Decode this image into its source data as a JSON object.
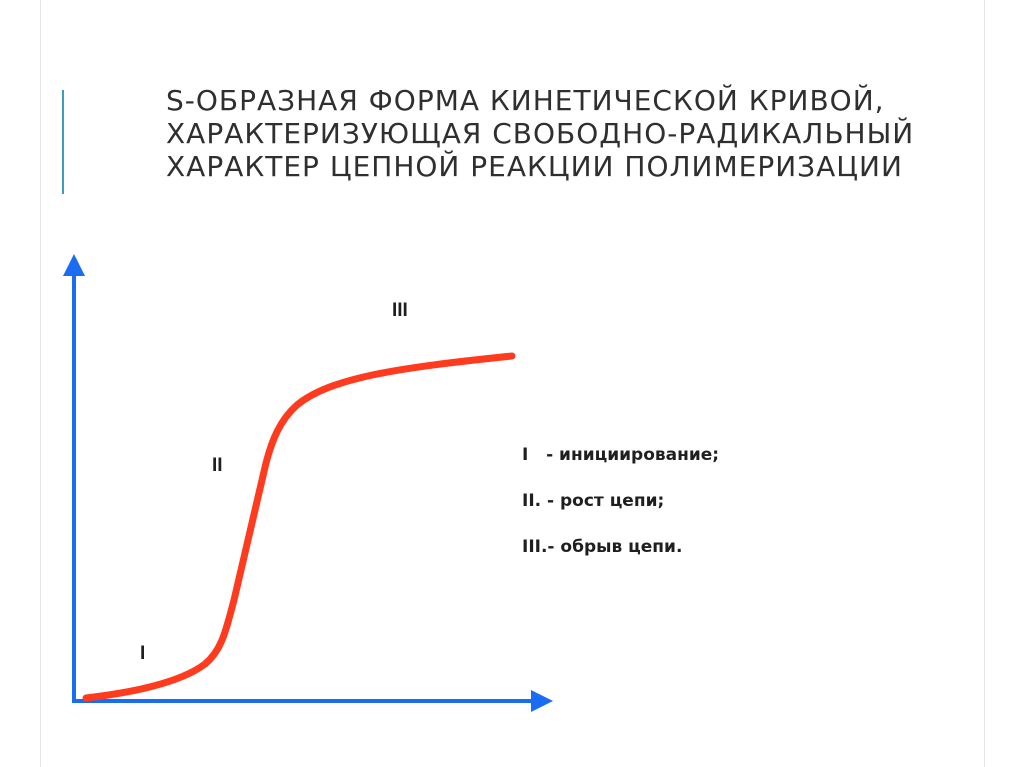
{
  "title": {
    "lines": [
      "S-ОБРАЗНАЯ ФОРМА КИНЕТИЧЕСКОЙ КРИВОЙ,",
      "ХАРАКТЕРИЗУЮЩАЯ СВОБОДНО-РАДИКАЛЬНЫЙ",
      "ХАРАКТЕР ЦЕПНОЙ РЕАКЦИИ ПОЛИМЕРИЗАЦИИ"
    ]
  },
  "diagram": {
    "stage_labels": [
      "I",
      "II",
      "III"
    ],
    "axis_color": "#1a6cf0",
    "curve_color": "#ff3b1f"
  },
  "legend": {
    "items": [
      "I   - инициирование;",
      "II. - рост цепи;",
      "III.- обрыв цепи."
    ]
  },
  "colors": {
    "accent": "#3b9fb5",
    "title_text": "#2f2f2f"
  }
}
